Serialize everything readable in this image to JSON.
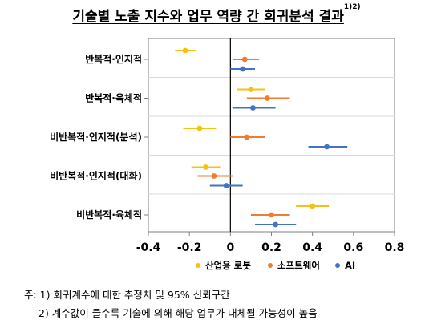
{
  "title": "기술별 노출 지수와 업무 역량 간 회귀분석 결과",
  "title_sup": "1)2)",
  "notes": [
    "주: 1) 회귀계수에 대한 추정치 및 95% 신뢰구간",
    "2) 계수값이 클수록 기술에 의해 해당 업무가 대체될 가능성이 높음"
  ],
  "colors": {
    "industrial_robot": "#F5C211",
    "software": "#ED7D31",
    "ai": "#4472C4"
  },
  "chart_data": {
    "type": "scatter",
    "subtype": "coefficient-plot-with-error-bars",
    "title": "기술별 노출 지수와 업무 역량 간 회귀분석 결과",
    "xlabel": "",
    "ylabel": "",
    "xlim": [
      -0.4,
      0.8
    ],
    "xticks": [
      -0.4,
      -0.2,
      0,
      0.2,
      0.4,
      0.6,
      0.8
    ],
    "xtick_labels": [
      "-0.4",
      "-0.2",
      "0",
      "0.2",
      "0.4",
      "0.6",
      "0.8"
    ],
    "zero_line": true,
    "grid": false,
    "legend_position": "bottom",
    "categories": [
      "반복적·인지적",
      "반복적·육체적",
      "비반복적·인지적(분석)",
      "비반복적·인지적(대화)",
      "비반복적·육체적"
    ],
    "series": [
      {
        "name": "산업용 로봇",
        "color": "#F5C211",
        "estimates": [
          -0.22,
          0.1,
          -0.15,
          -0.12,
          0.4
        ],
        "ci_low": [
          -0.27,
          0.03,
          -0.23,
          -0.19,
          0.32
        ],
        "ci_high": [
          -0.17,
          0.17,
          -0.07,
          -0.05,
          0.48
        ]
      },
      {
        "name": "소프트웨어",
        "color": "#ED7D31",
        "estimates": [
          0.07,
          0.18,
          0.08,
          -0.08,
          0.2
        ],
        "ci_low": [
          0.01,
          0.08,
          0.0,
          -0.16,
          0.1
        ],
        "ci_high": [
          0.14,
          0.29,
          0.17,
          0.01,
          0.29
        ]
      },
      {
        "name": "AI",
        "color": "#4472C4",
        "estimates": [
          0.06,
          0.11,
          0.47,
          -0.02,
          0.22
        ],
        "ci_low": [
          0.0,
          0.01,
          0.38,
          -0.1,
          0.12
        ],
        "ci_high": [
          0.12,
          0.22,
          0.57,
          0.06,
          0.32
        ]
      }
    ]
  }
}
